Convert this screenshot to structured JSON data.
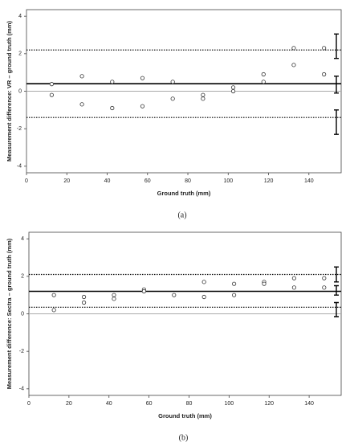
{
  "chart_data": [
    {
      "type": "scatter",
      "caption": "(a)",
      "xlabel": "Ground truth (mm)",
      "ylabel": "Measurement difference: VR – ground truth (mm)",
      "x": [
        12.5,
        12.5,
        27.5,
        27.5,
        42.5,
        42.5,
        57.5,
        57.5,
        72.5,
        72.5,
        87.5,
        87.5,
        102.5,
        102.5,
        117.5,
        117.5,
        132.5,
        132.5,
        147.5,
        147.5
      ],
      "y": [
        0.38,
        -0.2,
        0.8,
        -0.7,
        0.5,
        -0.9,
        0.7,
        -0.8,
        0.5,
        -0.4,
        -0.2,
        -0.4,
        0.2,
        0,
        0.9,
        0.5,
        2.3,
        1.4,
        2.3,
        0.9
      ],
      "xlim": [
        0,
        156
      ],
      "ylim": [
        -4.35,
        4.35
      ],
      "xticks": [
        0,
        20,
        40,
        60,
        80,
        100,
        120,
        140
      ],
      "yticks": [
        -4,
        -2,
        0,
        2,
        4
      ],
      "reference_lines": [
        {
          "value": 0,
          "color": "#aaaaaa",
          "style": "solid"
        },
        {
          "value": 0.4,
          "color": "#000000",
          "style": "solid"
        },
        {
          "value": 2.2,
          "color": "#000000",
          "style": "dotted"
        },
        {
          "value": -1.4,
          "color": "#000000",
          "style": "dotted"
        }
      ],
      "intervals": [
        {
          "low": 1.75,
          "high": 3.05
        },
        {
          "low": -0.1,
          "high": 0.8
        },
        {
          "low": -2.3,
          "high": -1.0
        }
      ]
    },
    {
      "type": "scatter",
      "caption": "(b)",
      "xlabel": "Ground truth (mm)",
      "ylabel": "Measurement difference: Sectra – ground truth (mm)",
      "x": [
        12.5,
        12.5,
        27.5,
        27.5,
        42.5,
        42.5,
        57.5,
        57.5,
        72.5,
        87.5,
        87.5,
        102.5,
        102.5,
        117.5,
        117.5,
        132.5,
        132.5,
        147.5,
        147.5
      ],
      "y": [
        1.0,
        0.2,
        0.9,
        0.6,
        1.0,
        0.8,
        1.3,
        1.2,
        1.0,
        1.7,
        0.9,
        1.6,
        1.0,
        1.7,
        1.6,
        1.9,
        1.4,
        1.9,
        1.4
      ],
      "xlim": [
        0,
        156
      ],
      "ylim": [
        -4.35,
        4.35
      ],
      "xticks": [
        0,
        20,
        40,
        60,
        80,
        100,
        120,
        140
      ],
      "yticks": [
        -4,
        -2,
        0,
        2,
        4
      ],
      "reference_lines": [
        {
          "value": 0,
          "color": "#aaaaaa",
          "style": "solid"
        },
        {
          "value": 1.2,
          "color": "#000000",
          "style": "solid"
        },
        {
          "value": 2.1,
          "color": "#000000",
          "style": "dotted"
        },
        {
          "value": 0.35,
          "color": "#000000",
          "style": "dotted"
        }
      ],
      "intervals": [
        {
          "low": 1.7,
          "high": 2.5
        },
        {
          "low": 1.0,
          "high": 1.5
        },
        {
          "low": -0.15,
          "high": 0.6
        }
      ]
    }
  ]
}
